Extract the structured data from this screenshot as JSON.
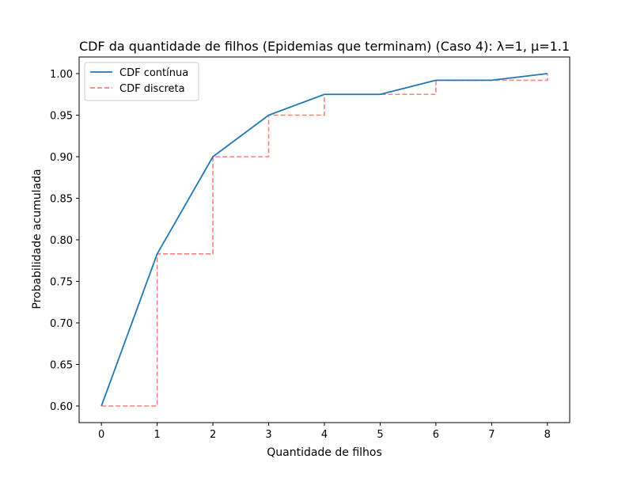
{
  "chart_data": {
    "type": "line",
    "title": "CDF da quantidade de filhos (Epidemias que terminam) (Caso 4): λ=1, μ=1.1",
    "xlabel": "Quantidade de filhos",
    "ylabel": "Probabilidade acumulada",
    "xlim": [
      -0.4,
      8.4
    ],
    "ylim": [
      0.58,
      1.02
    ],
    "grid": false,
    "legend_position": "top-left",
    "x_ticks": [
      0,
      1,
      2,
      3,
      4,
      5,
      6,
      7,
      8
    ],
    "x_tick_labels": [
      "0",
      "1",
      "2",
      "3",
      "4",
      "5",
      "6",
      "7",
      "8"
    ],
    "y_ticks": [
      0.6,
      0.65,
      0.7,
      0.75,
      0.8,
      0.85,
      0.9,
      0.95,
      1.0
    ],
    "y_tick_labels": [
      "0.60",
      "0.65",
      "0.70",
      "0.75",
      "0.80",
      "0.85",
      "0.90",
      "0.95",
      "1.00"
    ],
    "series": [
      {
        "name": "CDF contínua",
        "style": "solid",
        "color": "#1f77b4",
        "x": [
          0,
          1,
          2,
          3,
          4,
          5,
          6,
          7,
          8
        ],
        "y": [
          0.6,
          0.783,
          0.9,
          0.95,
          0.975,
          0.975,
          0.992,
          0.992,
          1.0
        ]
      },
      {
        "name": "CDF discreta",
        "style": "dashed-step",
        "color": "#ff7f7f",
        "x": [
          0,
          1,
          2,
          3,
          4,
          5,
          6,
          7,
          8
        ],
        "y": [
          0.6,
          0.783,
          0.9,
          0.95,
          0.975,
          0.975,
          0.992,
          0.992,
          1.0
        ]
      }
    ]
  }
}
